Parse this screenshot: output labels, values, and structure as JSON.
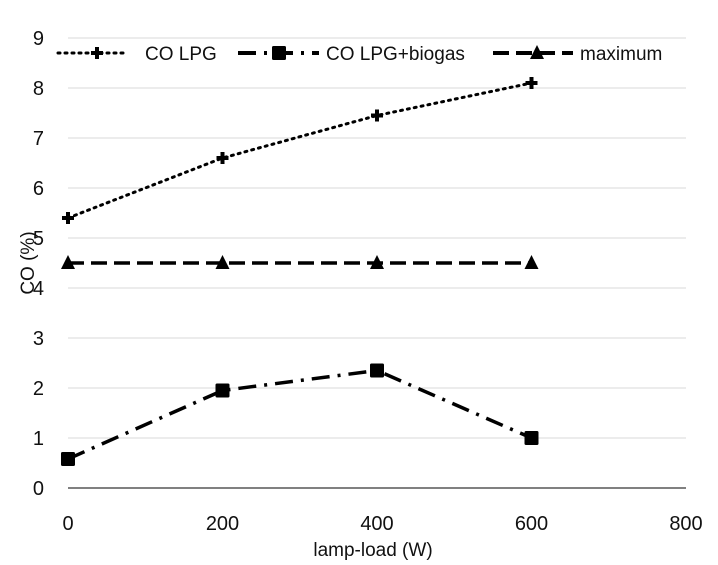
{
  "chart_data": {
    "type": "line",
    "title": "",
    "xlabel": "lamp-load (W)",
    "ylabel": "CO (%)",
    "xlim": [
      0,
      800
    ],
    "ylim": [
      0,
      9
    ],
    "x_ticks": [
      0,
      200,
      400,
      600,
      800
    ],
    "y_ticks": [
      0,
      1,
      2,
      3,
      4,
      5,
      6,
      7,
      8,
      9
    ],
    "grid": "horizontal",
    "legend_position": "top",
    "series": [
      {
        "name": "CO  LPG",
        "x": [
          0,
          200,
          400,
          600
        ],
        "values": [
          5.4,
          6.6,
          7.45,
          8.1
        ],
        "line_style": "dotted",
        "marker": "plus",
        "color": "#000000"
      },
      {
        "name": "CO LPG+biogas",
        "x": [
          0,
          200,
          400,
          600
        ],
        "values": [
          0.58,
          1.95,
          2.35,
          1.0
        ],
        "line_style": "dash-dot",
        "marker": "square",
        "color": "#000000"
      },
      {
        "name": "maximum",
        "x": [
          0,
          200,
          400,
          600
        ],
        "values": [
          4.5,
          4.5,
          4.5,
          4.5
        ],
        "line_style": "dashed",
        "marker": "triangle",
        "color": "#000000"
      }
    ]
  }
}
